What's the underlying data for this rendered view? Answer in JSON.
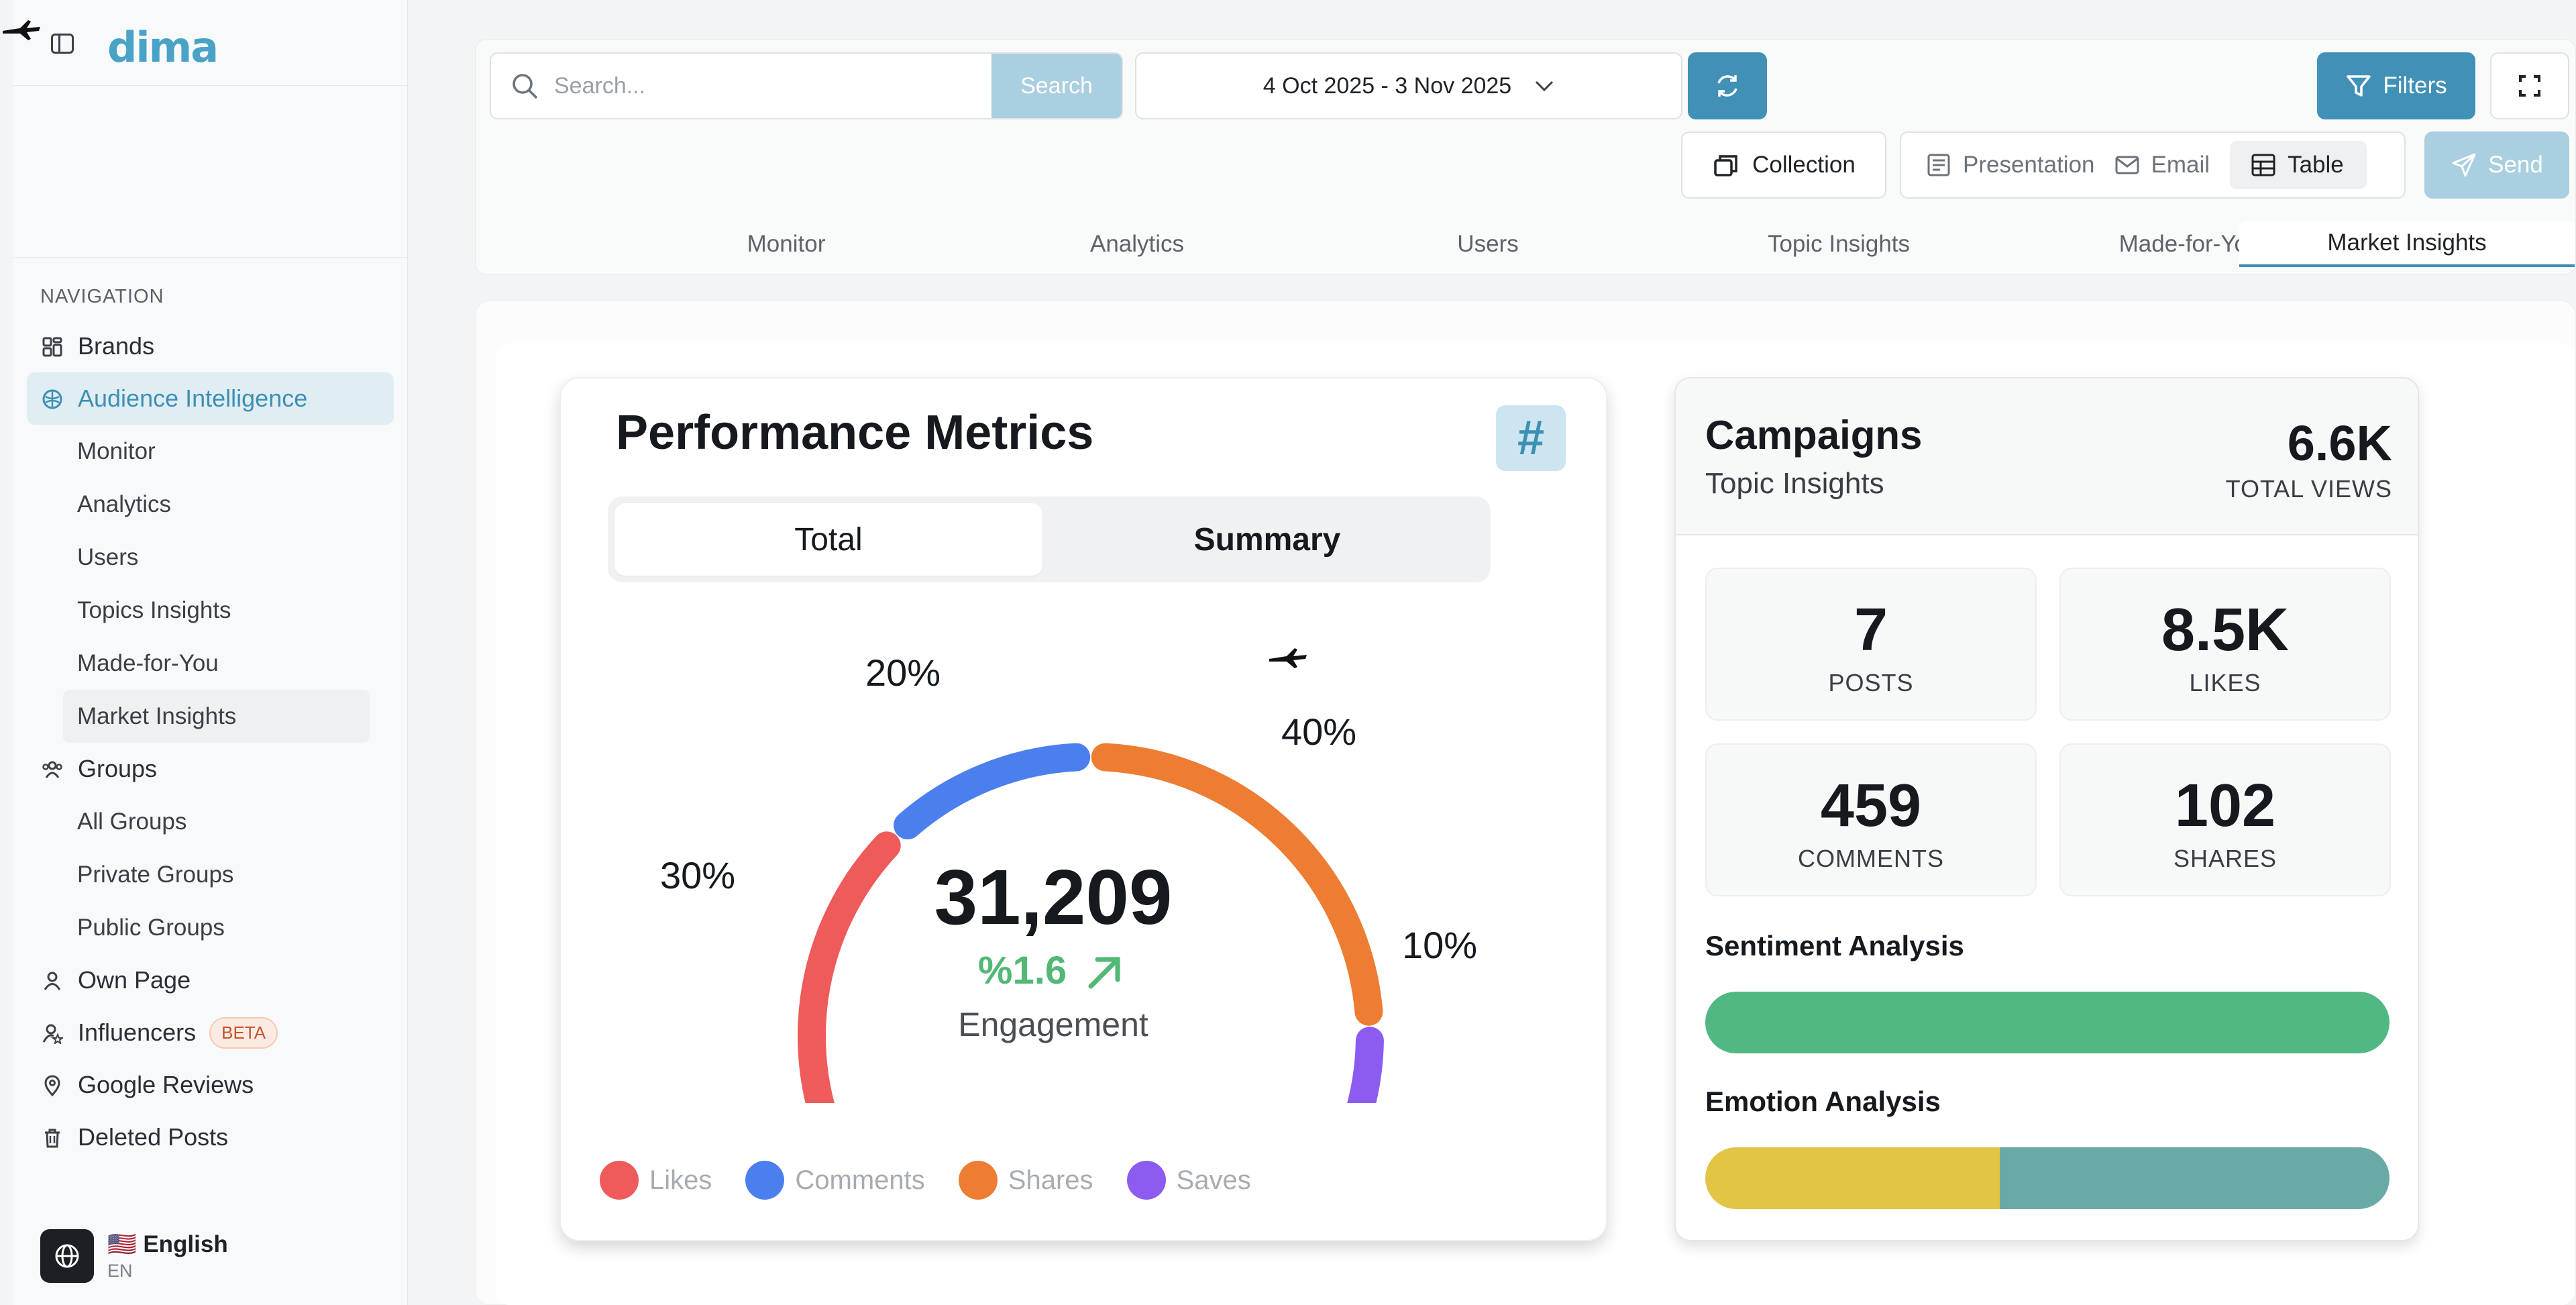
{
  "sidebar": {
    "logo": "dima",
    "nav_title": "NAVIGATION",
    "items": [
      {
        "label": "Brands"
      },
      {
        "label": "Audience Intelligence"
      },
      {
        "label": "Groups"
      },
      {
        "label": "Own Page"
      },
      {
        "label": "Influencers",
        "badge": "BETA"
      },
      {
        "label": "Google Reviews"
      },
      {
        "label": "Deleted Posts"
      }
    ],
    "audience_sub": [
      "Monitor",
      "Analytics",
      "Users",
      "Topics Insights",
      "Made-for-You",
      "Market Insights"
    ],
    "groups_sub": [
      "All Groups",
      "Private Groups",
      "Public Groups"
    ],
    "language": {
      "flag": "🇺🇸",
      "name": "English",
      "code": "EN"
    }
  },
  "toolbar": {
    "search_placeholder": "Search...",
    "search_button": "Search",
    "date_range": "4 Oct 2025 - 3 Nov 2025",
    "filters_label": "Filters",
    "collection_label": "Collection",
    "view_options": [
      "Presentation",
      "Email",
      "Table"
    ],
    "active_view": "Table",
    "send_label": "Send"
  },
  "tabs": [
    "Monitor",
    "Analytics",
    "Users",
    "Topic Insights",
    "Made-for-You",
    "Market Insights"
  ],
  "active_tab": "Market Insights",
  "performance": {
    "title": "Performance Metrics",
    "hash_icon": "#",
    "segments": [
      "Total",
      "Summary"
    ],
    "active_segment": "Total",
    "engagement_value": "31,209",
    "engagement_change": "%1.6",
    "engagement_label": "Engagement",
    "slices": [
      {
        "name": "Likes",
        "pct_label": "30%",
        "value": 30,
        "color": "#ef5b5b"
      },
      {
        "name": "Comments",
        "pct_label": "20%",
        "value": 20,
        "color": "#4c7fee"
      },
      {
        "name": "Shares",
        "pct_label": "40%",
        "value": 40,
        "color": "#ec7d32"
      },
      {
        "name": "Saves",
        "pct_label": "10%",
        "value": 10,
        "color": "#8c5cf0"
      }
    ]
  },
  "campaigns": {
    "title": "Campaigns",
    "subtitle": "Topic Insights",
    "total_views": "6.6K",
    "total_views_label": "TOTAL VIEWS",
    "stats": [
      {
        "value": "7",
        "label": "POSTS"
      },
      {
        "value": "8.5K",
        "label": "LIKES"
      },
      {
        "value": "459",
        "label": "COMMENTS"
      },
      {
        "value": "102",
        "label": "SHARES"
      }
    ],
    "sentiment_title": "Sentiment Analysis",
    "sentiment_color": "#52b883",
    "emotion_title": "Emotion Analysis",
    "emotion_segments": [
      {
        "color": "#e2c544",
        "fraction": 0.43
      },
      {
        "color": "#6aaaa6",
        "fraction": 0.57
      }
    ]
  }
}
